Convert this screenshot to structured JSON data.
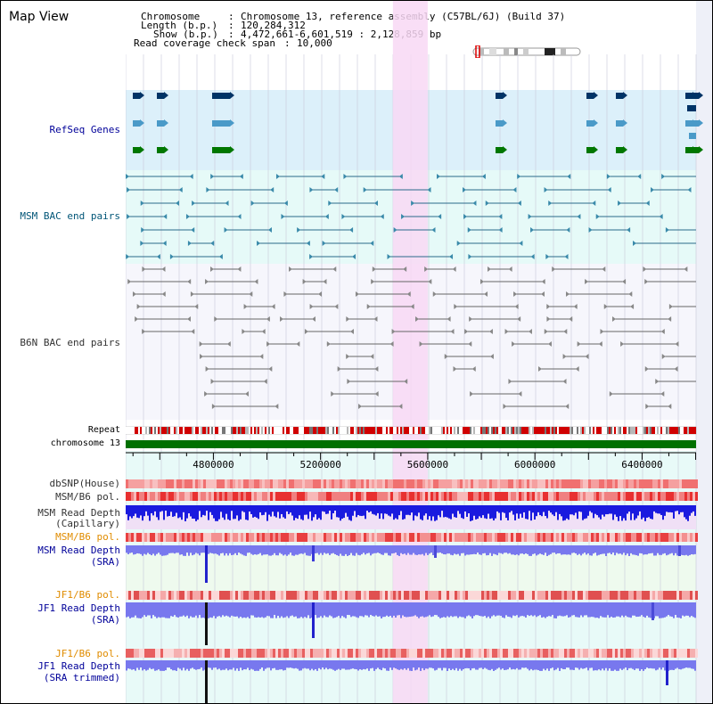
{
  "title": "Map View",
  "info": {
    "chromosome_key": "Chromosome",
    "chromosome_val": "Chromosome 13, reference assembly (C57BL/6J) (Build 37)",
    "length_key": "Length (b.p.)",
    "length_val": "120,284,312",
    "show_key": "Show (b.p.)",
    "show_val": "4,472,661-6,601,519 : 2,128,859 bp",
    "coverage_key": "Read coverage check span",
    "coverage_val": "10,000"
  },
  "tracks": {
    "refseq": "RefSeq Genes",
    "msm_bac": "MSM BAC end pairs",
    "b6n_bac": "B6N BAC end pairs",
    "repeat": "Repeat",
    "chrom": "chromosome 13",
    "dbsnp": "dbSNP(House)",
    "msm_b6_pol_1": "MSM/B6 pol.",
    "msm_depth_cap_1": "MSM Read Depth",
    "msm_depth_cap_2": "(Capillary)",
    "msm_b6_pol_2": "MSM/B6 pol.",
    "msm_depth_sra_1": "MSM Read Depth",
    "msm_depth_sra_2": "(SRA)",
    "jf1_b6_pol_1": "JF1/B6 pol.",
    "jf1_depth_sra_1": "JF1 Read Depth",
    "jf1_depth_sra_2": "(SRA)",
    "jf1_b6_pol_2": "JF1/B6 pol.",
    "jf1_depth_trim_1": "JF1 Read Depth",
    "jf1_depth_trim_2": "(SRA trimmed)"
  },
  "axis": {
    "ticks": [
      "4800000",
      "5200000",
      "5600000",
      "6000000",
      "6400000"
    ],
    "tick_values": [
      4800000,
      5200000,
      5600000,
      6000000,
      6400000
    ],
    "start": 4472661,
    "end": 6601519
  },
  "highlight": {
    "start": 5470000,
    "end": 5600000
  },
  "colors": {
    "refseq_bg": "#dcf0fa",
    "msm_bg": "#e6faf8",
    "b6n_bg": "#f6f6fc",
    "highlight": "#f8d8f4",
    "chrom_bar": "#007000",
    "msm_depth_cap": "#1a1adf",
    "sra_depth": "#7878ee",
    "label_blue": "#000099",
    "label_orange": "#e08c00"
  }
}
